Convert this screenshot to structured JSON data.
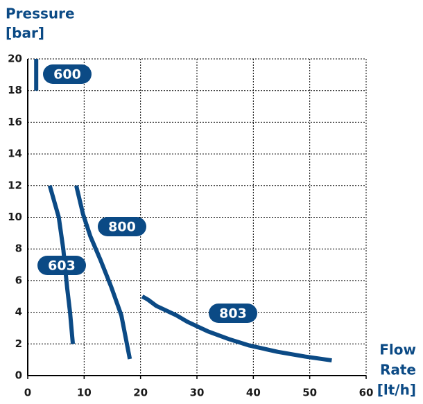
{
  "chart_data": {
    "type": "line",
    "ylabel": [
      "Pressure",
      "[bar]"
    ],
    "xlabel": [
      "Flow",
      "Rate",
      "[lt/h]"
    ],
    "xlim": [
      0,
      60
    ],
    "xticks": [
      0,
      10,
      20,
      30,
      40,
      50,
      60
    ],
    "ylim": [
      0,
      20
    ],
    "yticks": [
      0,
      2,
      4,
      6,
      8,
      10,
      12,
      14,
      16,
      18,
      20
    ],
    "grid": true,
    "series": [
      {
        "name": "600",
        "color": "#0b4a85",
        "x": [
          1.5,
          1.5
        ],
        "values": [
          18,
          20
        ]
      },
      {
        "name": "603",
        "color": "#0b4a85",
        "x": [
          3.9,
          5.5,
          6.3,
          7.0,
          7.5,
          8.0
        ],
        "values": [
          12,
          10,
          8,
          5.5,
          4,
          2
        ]
      },
      {
        "name": "800",
        "color": "#0b4a85",
        "x": [
          8.6,
          9.8,
          11.1,
          12.9,
          14.8,
          16.6,
          18.1
        ],
        "values": [
          12,
          10.2,
          8.8,
          7.3,
          5.6,
          3.8,
          1.05
        ]
      },
      {
        "name": "803",
        "color": "#0b4a85",
        "x": [
          20.3,
          21.3,
          22.8,
          26.4,
          28.3,
          31.9,
          35.7,
          39.3,
          44.3,
          49.2,
          53.9
        ],
        "values": [
          5.0,
          4.8,
          4.4,
          3.8,
          3.4,
          2.8,
          2.3,
          1.9,
          1.5,
          1.2,
          0.96
        ]
      }
    ]
  }
}
